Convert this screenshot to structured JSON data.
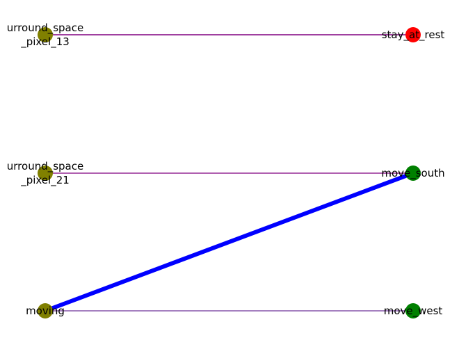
{
  "graph": {
    "nodes": [
      {
        "id": "n1",
        "label_lines": [
          "urround_space",
          "_pixel_13"
        ],
        "color": "#808000"
      },
      {
        "id": "n2",
        "label_lines": [
          "urround_space",
          "_pixel_21"
        ],
        "color": "#808000"
      },
      {
        "id": "n3",
        "label_lines": [
          "moving"
        ],
        "color": "#808000"
      },
      {
        "id": "n4",
        "label_lines": [
          "stay_at_rest"
        ],
        "color": "#ff0000"
      },
      {
        "id": "n5",
        "label_lines": [
          "move_south"
        ],
        "color": "#008000"
      },
      {
        "id": "n6",
        "label_lines": [
          "move_west"
        ],
        "color": "#008000"
      }
    ],
    "edges": [
      {
        "from": "n1",
        "to": "n4",
        "color": "#800080",
        "weight": 1.5
      },
      {
        "from": "n2",
        "to": "n5",
        "color": "#800080",
        "weight": 1.2
      },
      {
        "from": "n3",
        "to": "n5",
        "color": "#0000ff",
        "weight": 6
      },
      {
        "from": "n3",
        "to": "n6",
        "color": "#4b0082",
        "weight": 1
      }
    ]
  }
}
